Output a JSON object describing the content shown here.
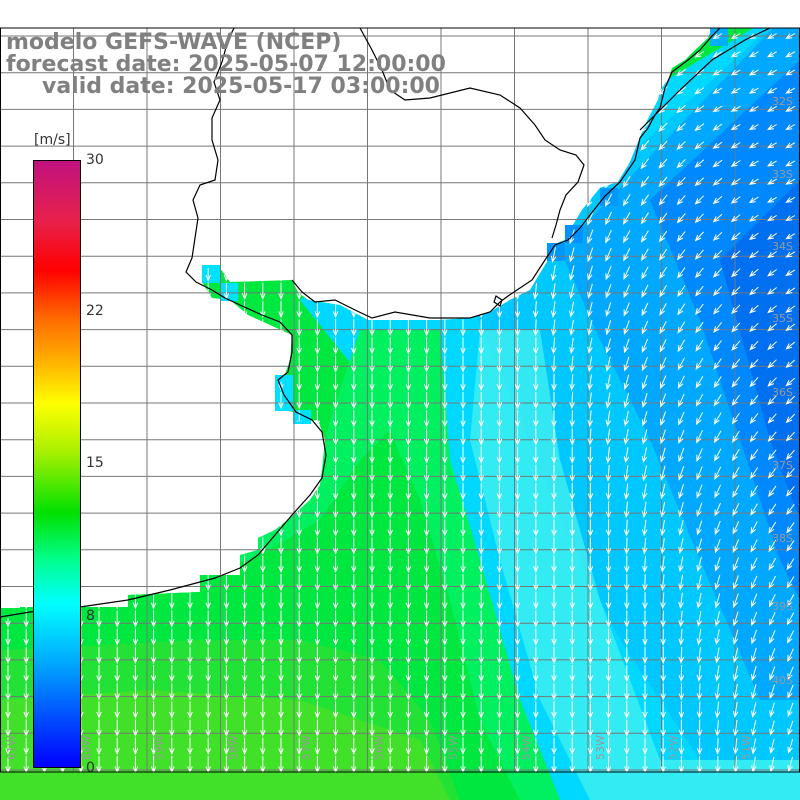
{
  "title": {
    "line1": "modelo GEFS-WAVE (NCEP)",
    "line2": "forecast date: 2025-05-07 12:00:00",
    "line3": "valid date: 2025-05-17 03:00:00"
  },
  "colorbar": {
    "unit": "[m/s]",
    "ticks": [
      "30",
      "22",
      "15",
      "8",
      "0"
    ],
    "min": 0,
    "max": 30
  },
  "map": {
    "longitude_labels": [
      "61W",
      "60W",
      "59W",
      "58W",
      "57W",
      "56W",
      "55W",
      "54W",
      "53W",
      "52W",
      "51W"
    ],
    "latitude_labels": [
      "32S",
      "33S",
      "34S",
      "35S",
      "36S",
      "37S",
      "38S",
      "39S",
      "40S"
    ],
    "colors": {
      "land": "#ffffff",
      "grid": "#777777",
      "coast": "#000000",
      "arrows": "#ffffff",
      "labels": "#999999"
    }
  }
}
